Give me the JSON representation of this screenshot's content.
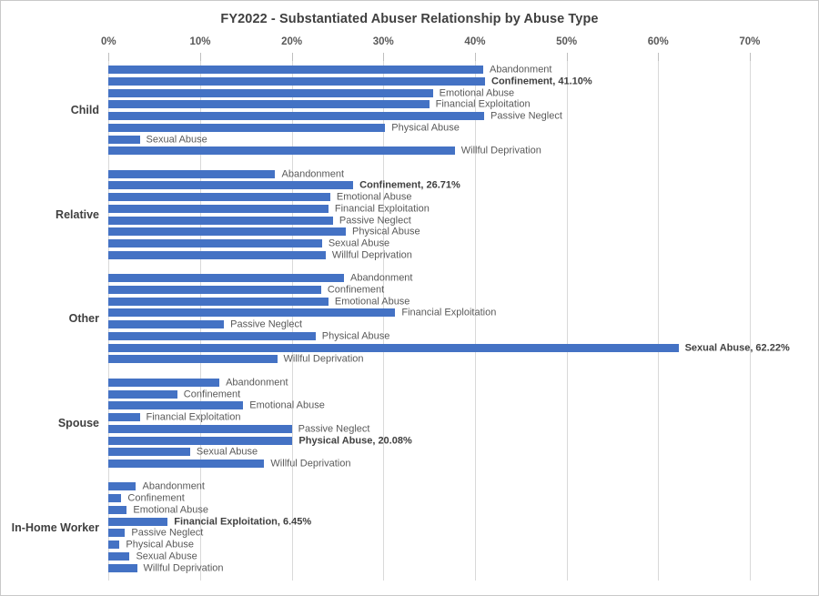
{
  "chart_data": {
    "type": "bar",
    "orientation": "horizontal-grouped",
    "title": "FY2022 - Substantiated Abuser Relationship by Abuse Type",
    "value_axis": {
      "position": "top",
      "unit": "%",
      "min": 0,
      "max": 70,
      "tick_step": 10,
      "ticks": [
        "0%",
        "10%",
        "20%",
        "30%",
        "40%",
        "50%",
        "60%",
        "70%"
      ],
      "grid": true
    },
    "abuse_types": [
      "Abandonment",
      "Confinement",
      "Emotional Abuse",
      "Financial Exploitation",
      "Passive Neglect",
      "Physical Abuse",
      "Sexual Abuse",
      "Willful Deprivation"
    ],
    "groups": [
      {
        "label": "Child",
        "values": [
          40.9,
          41.1,
          35.4,
          35.0,
          41.0,
          30.2,
          3.4,
          37.8
        ],
        "callout": {
          "index": 1,
          "label": "Confinement, 41.10%"
        }
      },
      {
        "label": "Relative",
        "values": [
          18.2,
          26.71,
          24.2,
          24.0,
          24.5,
          25.9,
          23.3,
          23.7
        ],
        "callout": {
          "index": 1,
          "label": "Confinement, 26.71%"
        }
      },
      {
        "label": "Other",
        "values": [
          25.7,
          23.2,
          24.0,
          31.3,
          12.6,
          22.6,
          62.22,
          18.4
        ],
        "callout": {
          "index": 6,
          "label": "Sexual Abuse, 62.22%"
        }
      },
      {
        "label": "Spouse",
        "values": [
          12.1,
          7.5,
          14.7,
          3.4,
          20.0,
          20.08,
          8.9,
          17.0
        ],
        "callout": {
          "index": 5,
          "label": "Physical Abuse, 20.08%"
        }
      },
      {
        "label": "In-Home Worker",
        "values": [
          3.0,
          1.4,
          2.0,
          6.45,
          1.8,
          1.2,
          2.3,
          3.1
        ],
        "callout": {
          "index": 3,
          "label": "Financial Exploitation, 6.45%"
        }
      }
    ],
    "legend": "none",
    "colors": {
      "bar": "#4472C4",
      "title": "#404040",
      "label": "#595959",
      "bold_label": "#404040",
      "gridline": "#D9D9D9",
      "tick": "#BFBFBF"
    }
  }
}
